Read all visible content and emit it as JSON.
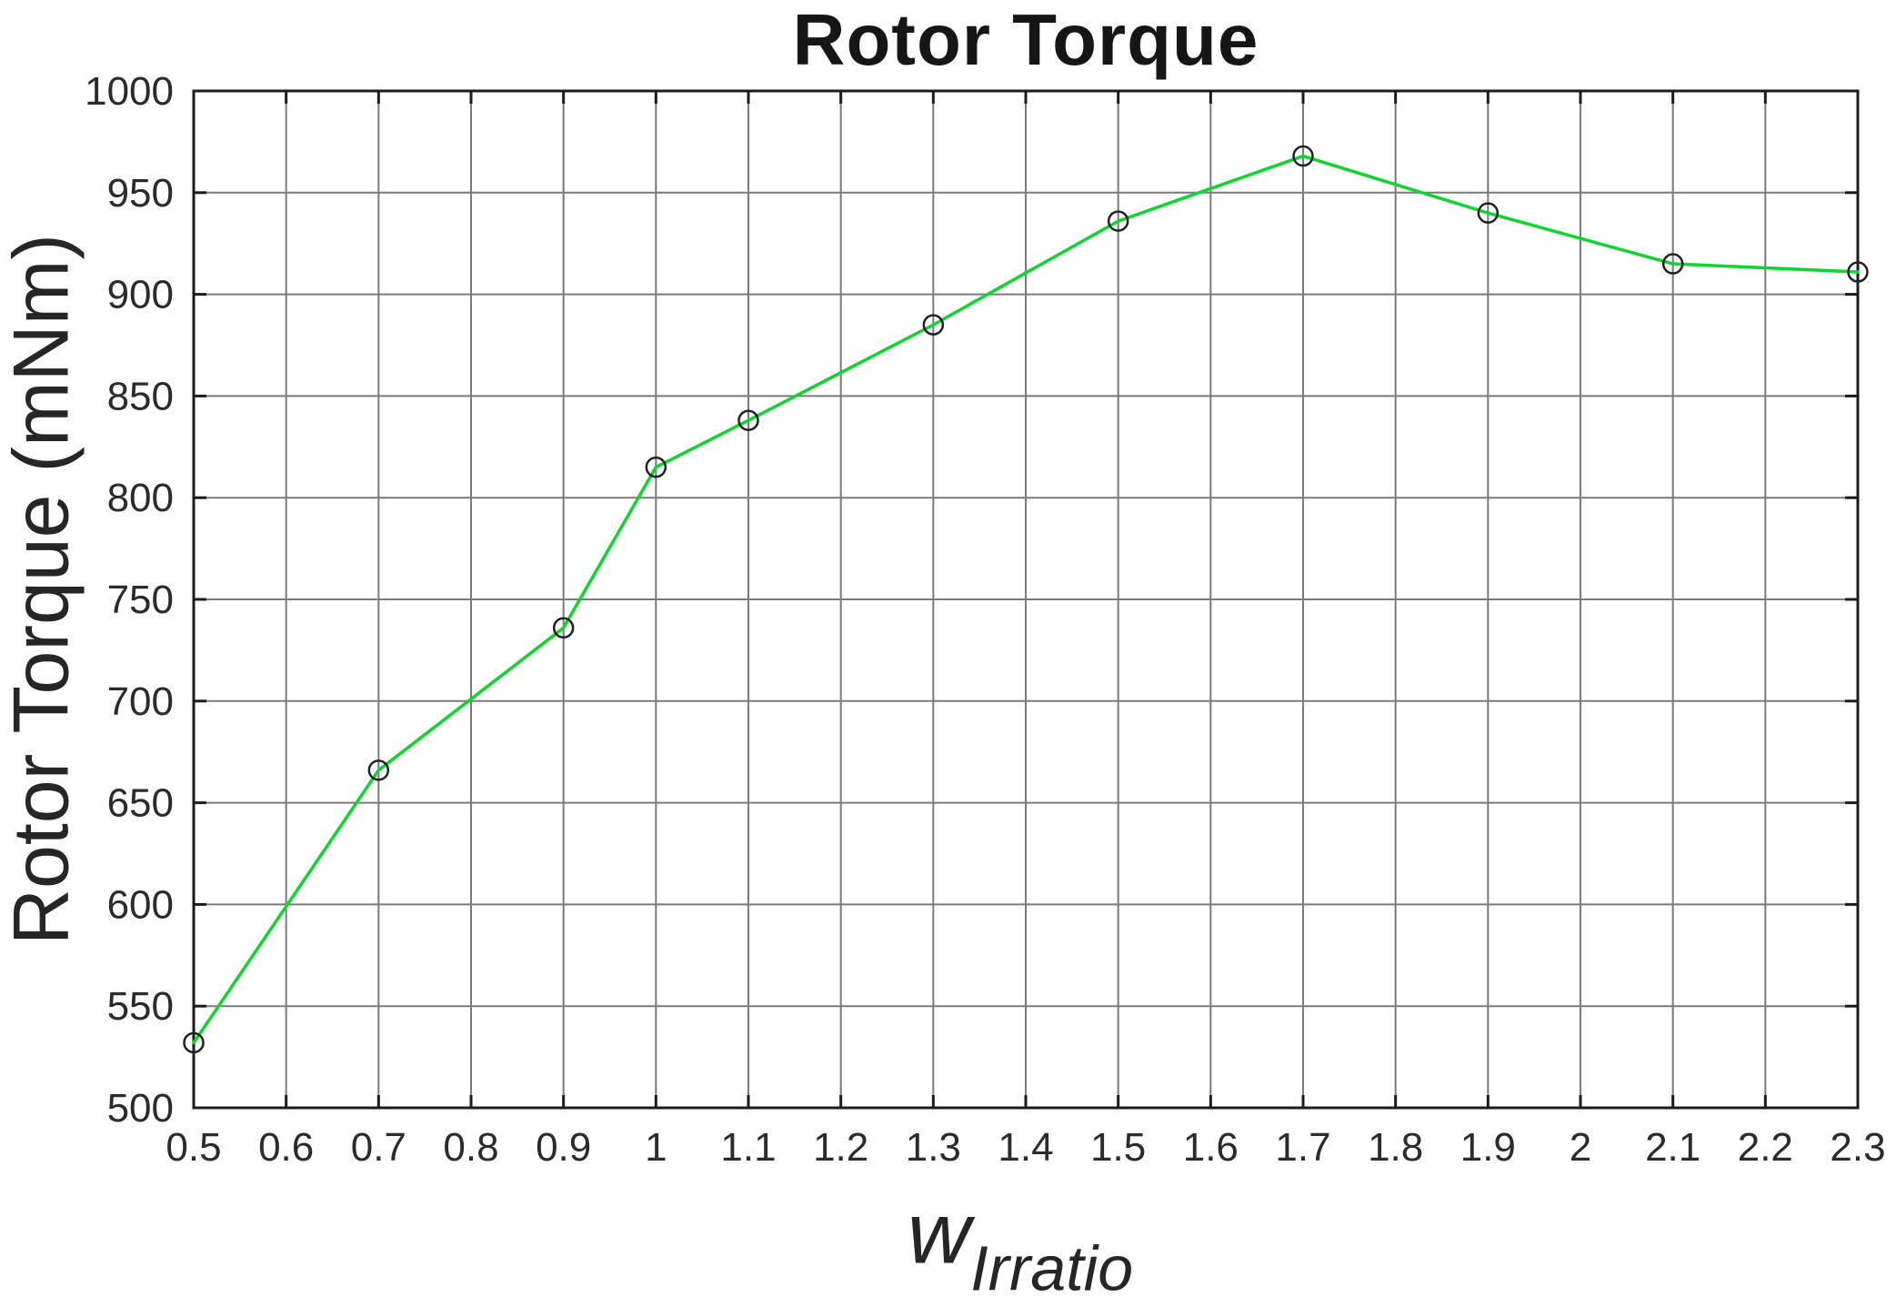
{
  "figure": {
    "background": "#ffffff"
  },
  "chart_data": {
    "type": "line",
    "title": "Rotor Torque",
    "ylabel": "Rotor Torque (mNm)",
    "xlabel": "w_Irratio",
    "xlabel_base": "w",
    "xlabel_subscript": "Irratio",
    "series": [
      {
        "name": "Rotor Torque",
        "x": [
          0.5,
          0.7,
          0.9,
          1.0,
          1.1,
          1.3,
          1.5,
          1.7,
          1.9,
          2.1,
          2.3
        ],
        "y": [
          532,
          666,
          736,
          815,
          838,
          885,
          936,
          968,
          940,
          915,
          911
        ]
      }
    ],
    "xlim": [
      0.5,
      2.3
    ],
    "ylim": [
      500,
      1000
    ],
    "xtick_labels": [
      "0.5",
      "0.6",
      "0.7",
      "0.8",
      "0.9",
      "1",
      "1.1",
      "1.2",
      "1.3",
      "1.4",
      "1.5",
      "1.6",
      "1.7",
      "1.8",
      "1.9",
      "2",
      "2.1",
      "2.2",
      "2.3"
    ],
    "ytick_labels": [
      "500",
      "550",
      "600",
      "650",
      "700",
      "750",
      "800",
      "850",
      "900",
      "950",
      "1000"
    ],
    "grid": "on",
    "legend_position": "none",
    "line_color": "#0ed62e",
    "marker": "o",
    "marker_edge_color": "#222222",
    "grid_color": "#7a7a7a",
    "axis_color": "#1c1c1c",
    "tick_direction": "in"
  }
}
